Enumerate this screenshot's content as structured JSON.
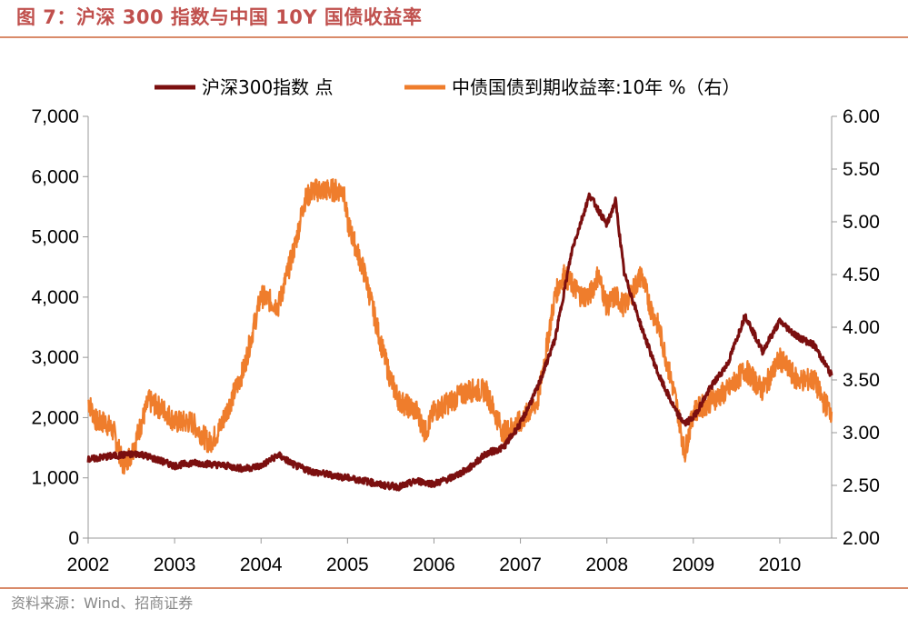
{
  "title": "图 7：沪深 300 指数与中国 10Y 国债收益率",
  "source": "资料来源：Wind、招商证券",
  "colors": {
    "accent": "#c0504d",
    "rule": "#d98b6a",
    "csi300": "#7b0f0f",
    "bond": "#ef7d2c"
  },
  "chart_data": {
    "type": "line",
    "x_ticks": [
      "2002",
      "2003",
      "2004",
      "2005",
      "2006",
      "2007",
      "2008",
      "2009",
      "2010"
    ],
    "y_left": {
      "min": 0,
      "max": 7000,
      "ticks": [
        "0",
        "1,000",
        "2,000",
        "3,000",
        "4,000",
        "5,000",
        "6,000",
        "7,000"
      ]
    },
    "y_right": {
      "min": 2.0,
      "max": 6.0,
      "ticks": [
        "2.00",
        "2.50",
        "3.00",
        "3.50",
        "4.00",
        "4.50",
        "5.00",
        "5.50",
        "6.00"
      ]
    },
    "legend_position": "top",
    "grid": false,
    "series": [
      {
        "name": "沪深300指数 点",
        "axis": "left",
        "color": "#7b0f0f",
        "x": [
          2002.0,
          2002.2,
          2002.4,
          2002.6,
          2002.8,
          2003.0,
          2003.2,
          2003.4,
          2003.6,
          2003.8,
          2004.0,
          2004.2,
          2004.4,
          2004.6,
          2004.8,
          2005.0,
          2005.2,
          2005.4,
          2005.6,
          2005.8,
          2006.0,
          2006.2,
          2006.4,
          2006.6,
          2006.8,
          2007.0,
          2007.2,
          2007.4,
          2007.6,
          2007.8,
          2008.0,
          2008.1,
          2008.2,
          2008.4,
          2008.6,
          2008.8,
          2008.9,
          2009.0,
          2009.2,
          2009.4,
          2009.6,
          2009.8,
          2010.0,
          2010.2,
          2010.4,
          2010.6
        ],
        "values": [
          1300,
          1350,
          1380,
          1400,
          1300,
          1200,
          1250,
          1230,
          1200,
          1150,
          1200,
          1380,
          1200,
          1100,
          1050,
          1000,
          950,
          880,
          850,
          950,
          900,
          1000,
          1150,
          1400,
          1500,
          1900,
          2500,
          3300,
          4800,
          5700,
          5200,
          5600,
          4400,
          3500,
          2700,
          2100,
          1900,
          2000,
          2500,
          2900,
          3700,
          3100,
          3600,
          3350,
          3200,
          2700
        ]
      },
      {
        "name": "中债国债到期收益率:10年 %（右）",
        "axis": "right",
        "color": "#ef7d2c",
        "x": [
          2002.0,
          2002.1,
          2002.2,
          2002.3,
          2002.4,
          2002.5,
          2002.7,
          2002.9,
          2003.0,
          2003.2,
          2003.4,
          2003.5,
          2003.7,
          2003.8,
          2004.0,
          2004.2,
          2004.4,
          2004.5,
          2004.6,
          2004.8,
          2004.95,
          2005.0,
          2005.2,
          2005.4,
          2005.5,
          2005.6,
          2005.8,
          2005.9,
          2006.0,
          2006.2,
          2006.4,
          2006.6,
          2006.8,
          2007.0,
          2007.2,
          2007.4,
          2007.5,
          2007.7,
          2007.8,
          2007.9,
          2008.0,
          2008.1,
          2008.2,
          2008.4,
          2008.5,
          2008.6,
          2008.8,
          2008.9,
          2009.0,
          2009.2,
          2009.4,
          2009.6,
          2009.8,
          2010.0,
          2010.2,
          2010.4,
          2010.5,
          2010.6
        ],
        "values": [
          3.3,
          3.1,
          3.1,
          3.0,
          2.7,
          2.8,
          3.3,
          3.2,
          3.1,
          3.1,
          2.9,
          3.0,
          3.4,
          3.6,
          4.3,
          4.2,
          4.8,
          5.2,
          5.3,
          5.3,
          5.3,
          5.0,
          4.5,
          3.8,
          3.5,
          3.3,
          3.2,
          3.0,
          3.2,
          3.3,
          3.4,
          3.4,
          3.0,
          3.1,
          3.3,
          4.3,
          4.5,
          4.3,
          4.3,
          4.5,
          4.2,
          4.3,
          4.2,
          4.5,
          4.2,
          4.0,
          3.3,
          2.8,
          3.2,
          3.3,
          3.4,
          3.6,
          3.4,
          3.7,
          3.5,
          3.5,
          3.3,
          3.2
        ]
      }
    ]
  }
}
